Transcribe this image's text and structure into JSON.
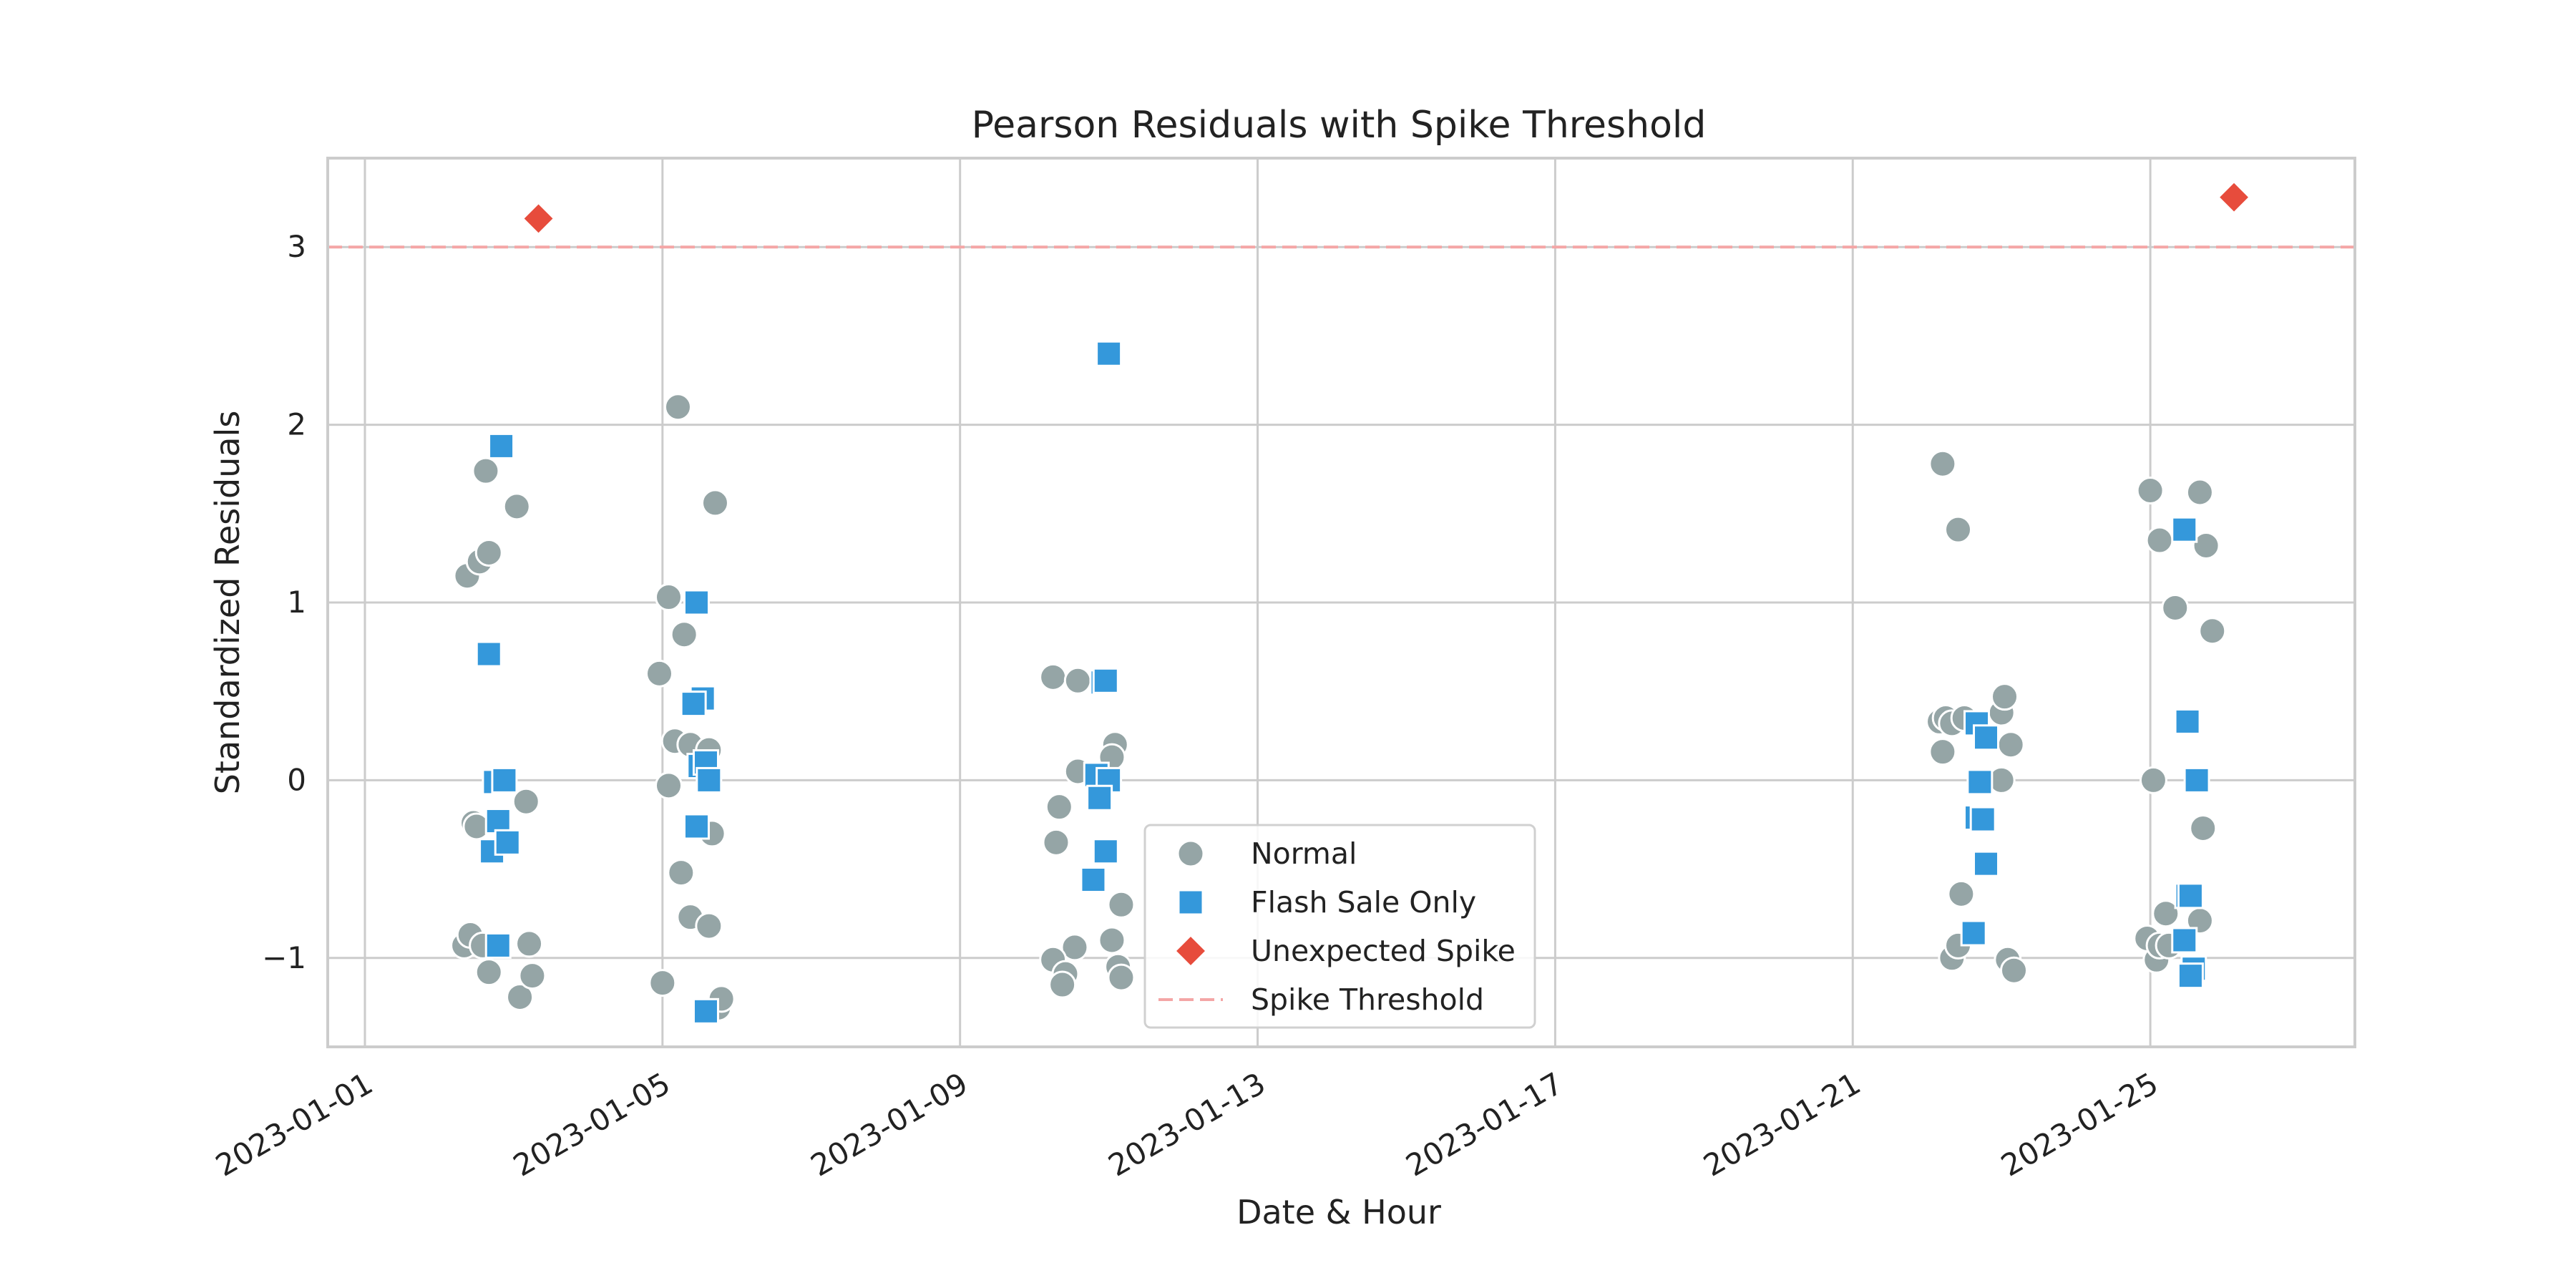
{
  "chart_data": {
    "type": "scatter",
    "title": "Pearson Residuals with Spike Threshold",
    "xlabel": "Date & Hour",
    "ylabel": "Standardized Residuals",
    "x_axis": "date",
    "xlim": [
      "2022-12-31T12:00",
      "2023-01-27T18:00"
    ],
    "ylim": [
      -1.5,
      3.5
    ],
    "x_ticks": [
      "2023-01-01",
      "2023-01-05",
      "2023-01-09",
      "2023-01-13",
      "2023-01-17",
      "2023-01-21",
      "2023-01-25"
    ],
    "y_ticks": [
      -1,
      0,
      1,
      2,
      3
    ],
    "y_tick_labels": [
      "−1",
      "0",
      "1",
      "2",
      "3"
    ],
    "grid": true,
    "legend": "lower-center",
    "threshold": {
      "name": "Spike Threshold",
      "y": 3.0,
      "color": "#f4a6a6",
      "style": "dashed"
    },
    "series": [
      {
        "name": "Normal",
        "marker": "circle",
        "color": "#95a5a6",
        "points": [
          [
            "2023-01-02T09:00",
            1.15
          ],
          [
            "2023-01-02T13:00",
            1.23
          ],
          [
            "2023-01-02T15:00",
            1.74
          ],
          [
            "2023-01-02T16:00",
            1.28
          ],
          [
            "2023-01-03T01:00",
            1.54
          ],
          [
            "2023-01-02T11:00",
            -0.24
          ],
          [
            "2023-01-02T12:00",
            -0.26
          ],
          [
            "2023-01-03T04:00",
            -0.12
          ],
          [
            "2023-01-02T08:00",
            -0.93
          ],
          [
            "2023-01-02T10:00",
            -0.87
          ],
          [
            "2023-01-02T14:00",
            -0.93
          ],
          [
            "2023-01-02T16:00",
            -1.08
          ],
          [
            "2023-01-03T02:00",
            -1.22
          ],
          [
            "2023-01-03T05:00",
            -0.92
          ],
          [
            "2023-01-03T06:00",
            -1.1
          ],
          [
            "2023-01-05T05:00",
            2.1
          ],
          [
            "2023-01-05T02:00",
            1.03
          ],
          [
            "2023-01-05T07:00",
            0.82
          ],
          [
            "2023-01-04T23:00",
            0.6
          ],
          [
            "2023-01-05T04:00",
            0.22
          ],
          [
            "2023-01-05T09:00",
            0.2
          ],
          [
            "2023-01-05T02:00",
            -0.03
          ],
          [
            "2023-01-05T06:00",
            -0.52
          ],
          [
            "2023-01-05T09:00",
            -0.77
          ],
          [
            "2023-01-05T00:00",
            -1.14
          ],
          [
            "2023-01-05T17:00",
            1.56
          ],
          [
            "2023-01-05T15:00",
            0.17
          ],
          [
            "2023-01-05T16:00",
            -0.3
          ],
          [
            "2023-01-05T15:00",
            -0.82
          ],
          [
            "2023-01-05T18:00",
            -1.28
          ],
          [
            "2023-01-05T19:00",
            -1.23
          ],
          [
            "2023-01-10T06:00",
            0.58
          ],
          [
            "2023-01-10T14:00",
            0.56
          ],
          [
            "2023-01-10T14:00",
            0.05
          ],
          [
            "2023-01-10T08:00",
            -0.15
          ],
          [
            "2023-01-10T07:00",
            -0.35
          ],
          [
            "2023-01-10T13:00",
            -0.94
          ],
          [
            "2023-01-10T06:00",
            -1.01
          ],
          [
            "2023-01-10T10:00",
            -1.09
          ],
          [
            "2023-01-10T09:00",
            -1.15
          ],
          [
            "2023-01-11T02:00",
            0.2
          ],
          [
            "2023-01-11T01:00",
            0.13
          ],
          [
            "2023-01-11T04:00",
            -0.7
          ],
          [
            "2023-01-11T01:00",
            -0.9
          ],
          [
            "2023-01-11T03:00",
            -1.05
          ],
          [
            "2023-01-11T04:00",
            -1.11
          ],
          [
            "2023-01-22T05:00",
            1.78
          ],
          [
            "2023-01-22T10:00",
            1.41
          ],
          [
            "2023-01-22T04:00",
            0.33
          ],
          [
            "2023-01-22T06:00",
            0.35
          ],
          [
            "2023-01-22T08:00",
            0.32
          ],
          [
            "2023-01-22T12:00",
            0.35
          ],
          [
            "2023-01-22T05:00",
            0.16
          ],
          [
            "2023-01-22T11:00",
            -0.64
          ],
          [
            "2023-01-22T08:00",
            -1.0
          ],
          [
            "2023-01-22T10:00",
            -0.93
          ],
          [
            "2023-01-23T00:00",
            0.38
          ],
          [
            "2023-01-23T01:00",
            0.47
          ],
          [
            "2023-01-23T03:00",
            0.2
          ],
          [
            "2023-01-23T00:00",
            0.0
          ],
          [
            "2023-01-23T02:00",
            -1.01
          ],
          [
            "2023-01-23T04:00",
            -1.07
          ],
          [
            "2023-01-25T00:00",
            1.63
          ],
          [
            "2023-01-25T03:00",
            1.35
          ],
          [
            "2023-01-25T08:00",
            0.97
          ],
          [
            "2023-01-25T01:00",
            0.0
          ],
          [
            "2023-01-24T23:00",
            -0.89
          ],
          [
            "2023-01-25T02:00",
            -1.01
          ],
          [
            "2023-01-25T05:00",
            -0.75
          ],
          [
            "2023-01-25T03:00",
            -0.93
          ],
          [
            "2023-01-25T06:00",
            -0.93
          ],
          [
            "2023-01-25T16:00",
            1.62
          ],
          [
            "2023-01-25T18:00",
            1.32
          ],
          [
            "2023-01-25T20:00",
            0.84
          ],
          [
            "2023-01-25T17:00",
            -0.27
          ],
          [
            "2023-01-25T16:00",
            -0.79
          ]
        ]
      },
      {
        "name": "Flash Sale Only",
        "marker": "square",
        "color": "#3498db",
        "points": [
          [
            "2023-01-02T20:00",
            1.88
          ],
          [
            "2023-01-02T16:00",
            0.71
          ],
          [
            "2023-01-02T18:00",
            -0.01
          ],
          [
            "2023-01-02T21:00",
            0.0
          ],
          [
            "2023-01-02T19:00",
            -0.23
          ],
          [
            "2023-01-02T17:00",
            -0.4
          ],
          [
            "2023-01-02T22:00",
            -0.35
          ],
          [
            "2023-01-02T19:00",
            -0.93
          ],
          [
            "2023-01-05T11:00",
            1.0
          ],
          [
            "2023-01-05T13:00",
            0.46
          ],
          [
            "2023-01-05T10:00",
            0.43
          ],
          [
            "2023-01-05T12:00",
            0.08
          ],
          [
            "2023-01-05T14:00",
            0.1
          ],
          [
            "2023-01-05T15:00",
            0.0
          ],
          [
            "2023-01-05T11:00",
            -0.26
          ],
          [
            "2023-01-05T14:00",
            -1.3
          ],
          [
            "2023-01-11T00:00",
            2.4
          ],
          [
            "2023-01-10T22:00",
            0.55
          ],
          [
            "2023-01-10T23:00",
            0.56
          ],
          [
            "2023-01-10T20:00",
            0.03
          ],
          [
            "2023-01-11T00:00",
            0.0
          ],
          [
            "2023-01-10T21:00",
            -0.1
          ],
          [
            "2023-01-10T23:00",
            -0.4
          ],
          [
            "2023-01-10T19:00",
            -0.56
          ],
          [
            "2023-01-22T16:00",
            0.32
          ],
          [
            "2023-01-22T19:00",
            0.24
          ],
          [
            "2023-01-22T17:00",
            -0.01
          ],
          [
            "2023-01-22T16:00",
            -0.21
          ],
          [
            "2023-01-22T18:00",
            -0.22
          ],
          [
            "2023-01-22T19:00",
            -0.47
          ],
          [
            "2023-01-22T15:00",
            -0.86
          ],
          [
            "2023-01-25T11:00",
            1.41
          ],
          [
            "2023-01-25T12:00",
            0.33
          ],
          [
            "2023-01-25T15:00",
            0.0
          ],
          [
            "2023-01-25T12:00",
            -0.65
          ],
          [
            "2023-01-25T13:00",
            -0.65
          ],
          [
            "2023-01-25T11:00",
            -0.9
          ],
          [
            "2023-01-25T14:00",
            -1.06
          ],
          [
            "2023-01-25T13:00",
            -1.1
          ]
        ]
      },
      {
        "name": "Unexpected Spike",
        "marker": "diamond",
        "color": "#e74c3c",
        "points": [
          [
            "2023-01-03T08:00",
            3.16
          ],
          [
            "2023-01-26T03:00",
            3.28
          ]
        ]
      }
    ]
  }
}
